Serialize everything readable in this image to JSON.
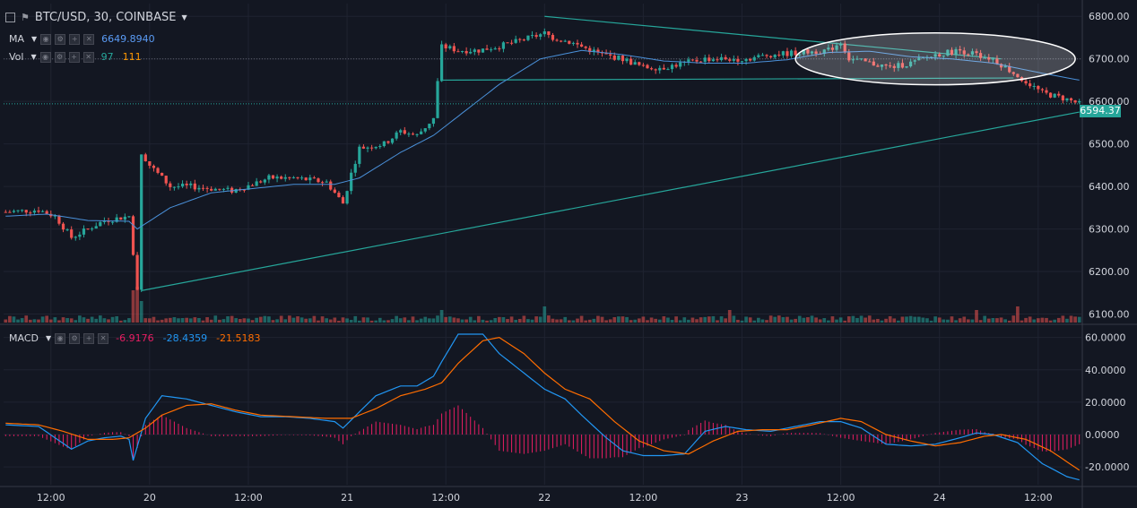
{
  "header": {
    "symbol_title": "BTC/USD, 30, COINBASE"
  },
  "indicators": {
    "ma": {
      "name": "MA",
      "value": "6649.8940"
    },
    "vol": {
      "name": "Vol",
      "value1": "97",
      "value2": "111"
    },
    "macd": {
      "name": "MACD",
      "value_hist": "-6.9176",
      "value_macd": "-28.4359",
      "value_signal": "-21.5183"
    }
  },
  "last_price_label": "6594.37",
  "colors": {
    "background": "#131722",
    "up": "#26a69a",
    "down": "#ef5350",
    "ma_line": "#4a90d9",
    "macd_line": "#2196f3",
    "signal_line": "#ff6d00",
    "histogram": "#e91e63",
    "trendline": "#26a69a"
  },
  "chart_data": [
    {
      "type": "candlestick",
      "title": "BTC/USD, 30, COINBASE",
      "ylim": [
        6080,
        6830
      ],
      "y_ticks": [
        "6800.00",
        "6700.00",
        "6600.00",
        "6500.00",
        "6400.00",
        "6300.00",
        "6200.00",
        "6100.00"
      ],
      "y_tick_values": [
        6800,
        6700,
        6600,
        6500,
        6400,
        6300,
        6200,
        6100
      ],
      "x_ticks": [
        "12:00",
        "20",
        "12:00",
        "21",
        "12:00",
        "22",
        "12:00",
        "23",
        "12:00",
        "24",
        "12:00"
      ],
      "x_tick_bars": [
        11,
        35,
        59,
        83,
        107,
        131,
        155,
        179,
        203,
        227,
        251
      ],
      "bar_count": 262,
      "last_price": 6594.37,
      "close_path_keyframes": [
        [
          0,
          6340
        ],
        [
          8,
          6345
        ],
        [
          12,
          6330
        ],
        [
          16,
          6280
        ],
        [
          20,
          6300
        ],
        [
          24,
          6320
        ],
        [
          30,
          6330
        ],
        [
          32,
          6160
        ],
        [
          33,
          6480
        ],
        [
          35,
          6450
        ],
        [
          40,
          6400
        ],
        [
          45,
          6400
        ],
        [
          55,
          6390
        ],
        [
          60,
          6405
        ],
        [
          64,
          6420
        ],
        [
          70,
          6420
        ],
        [
          78,
          6410
        ],
        [
          82,
          6360
        ],
        [
          84,
          6430
        ],
        [
          86,
          6490
        ],
        [
          92,
          6500
        ],
        [
          96,
          6530
        ],
        [
          100,
          6520
        ],
        [
          104,
          6560
        ],
        [
          106,
          6730
        ],
        [
          110,
          6720
        ],
        [
          115,
          6720
        ],
        [
          120,
          6730
        ],
        [
          124,
          6740
        ],
        [
          131,
          6760
        ],
        [
          133,
          6750
        ],
        [
          137,
          6740
        ],
        [
          145,
          6710
        ],
        [
          150,
          6700
        ],
        [
          155,
          6680
        ],
        [
          160,
          6680
        ],
        [
          170,
          6700
        ],
        [
          175,
          6700
        ],
        [
          180,
          6700
        ],
        [
          186,
          6710
        ],
        [
          200,
          6720
        ],
        [
          203,
          6740
        ],
        [
          205,
          6700
        ],
        [
          215,
          6680
        ],
        [
          220,
          6690
        ],
        [
          226,
          6710
        ],
        [
          232,
          6720
        ],
        [
          240,
          6700
        ],
        [
          246,
          6660
        ],
        [
          252,
          6620
        ],
        [
          258,
          6605
        ],
        [
          261,
          6594
        ]
      ],
      "ma_path_keyframes": [
        [
          0,
          6330
        ],
        [
          10,
          6335
        ],
        [
          20,
          6320
        ],
        [
          30,
          6318
        ],
        [
          32,
          6300
        ],
        [
          40,
          6350
        ],
        [
          50,
          6385
        ],
        [
          60,
          6395
        ],
        [
          70,
          6405
        ],
        [
          80,
          6405
        ],
        [
          86,
          6420
        ],
        [
          96,
          6480
        ],
        [
          104,
          6520
        ],
        [
          112,
          6580
        ],
        [
          120,
          6640
        ],
        [
          130,
          6700
        ],
        [
          140,
          6720
        ],
        [
          150,
          6710
        ],
        [
          160,
          6695
        ],
        [
          170,
          6690
        ],
        [
          180,
          6690
        ],
        [
          190,
          6698
        ],
        [
          200,
          6715
        ],
        [
          210,
          6718
        ],
        [
          220,
          6705
        ],
        [
          230,
          6700
        ],
        [
          240,
          6690
        ],
        [
          250,
          6670
        ],
        [
          261,
          6650
        ]
      ],
      "volume_spikes": [
        [
          31,
          0.9
        ],
        [
          32,
          1.0
        ],
        [
          33,
          0.6
        ],
        [
          106,
          0.35
        ],
        [
          131,
          0.45
        ],
        [
          176,
          0.35
        ],
        [
          236,
          0.35
        ],
        [
          246,
          0.45
        ]
      ],
      "trendlines": [
        {
          "name": "support",
          "points": [
            [
              33,
              6155
            ],
            [
              261,
              6575
            ]
          ]
        },
        {
          "name": "upper",
          "points": [
            [
              131,
              6800
            ],
            [
              242,
              6700
            ]
          ]
        },
        {
          "name": "base",
          "points": [
            [
              106,
              6650
            ],
            [
              245,
              6655
            ]
          ]
        }
      ],
      "highlight_ellipse": {
        "center": [
          226,
          6700
        ],
        "radius_bars": 34,
        "radius_price": 61
      }
    },
    {
      "type": "line",
      "title": "MACD",
      "ylim": [
        -31,
        67
      ],
      "y_ticks": [
        "60.0000",
        "40.0000",
        "20.0000",
        "0.0000",
        "-20.0000"
      ],
      "y_tick_values": [
        60,
        40,
        20,
        0,
        -20
      ],
      "series": [
        {
          "name": "MACD",
          "keyframes": [
            [
              0,
              6
            ],
            [
              8,
              5
            ],
            [
              12,
              -2
            ],
            [
              16,
              -9
            ],
            [
              20,
              -4
            ],
            [
              24,
              -2
            ],
            [
              28,
              -1
            ],
            [
              30,
              -3
            ],
            [
              31,
              -16
            ],
            [
              34,
              10
            ],
            [
              38,
              24
            ],
            [
              44,
              22
            ],
            [
              50,
              18
            ],
            [
              56,
              14
            ],
            [
              62,
              11
            ],
            [
              68,
              11
            ],
            [
              74,
              10
            ],
            [
              80,
              8
            ],
            [
              82,
              4
            ],
            [
              86,
              14
            ],
            [
              90,
              24
            ],
            [
              96,
              30
            ],
            [
              100,
              30
            ],
            [
              104,
              36
            ],
            [
              106,
              45
            ],
            [
              110,
              62
            ],
            [
              116,
              62
            ],
            [
              120,
              50
            ],
            [
              126,
              38
            ],
            [
              131,
              28
            ],
            [
              136,
              22
            ],
            [
              140,
              12
            ],
            [
              146,
              -2
            ],
            [
              150,
              -10
            ],
            [
              155,
              -13
            ],
            [
              160,
              -13
            ],
            [
              165,
              -12
            ],
            [
              170,
              2
            ],
            [
              175,
              5
            ],
            [
              180,
              3
            ],
            [
              186,
              2
            ],
            [
              192,
              5
            ],
            [
              198,
              8
            ],
            [
              203,
              8
            ],
            [
              208,
              4
            ],
            [
              214,
              -6
            ],
            [
              220,
              -7
            ],
            [
              226,
              -6
            ],
            [
              232,
              -2
            ],
            [
              236,
              1
            ],
            [
              240,
              0
            ],
            [
              246,
              -5
            ],
            [
              252,
              -18
            ],
            [
              258,
              -26
            ],
            [
              261,
              -28
            ]
          ]
        },
        {
          "name": "Signal",
          "keyframes": [
            [
              0,
              7
            ],
            [
              8,
              6
            ],
            [
              14,
              2
            ],
            [
              20,
              -3
            ],
            [
              26,
              -3
            ],
            [
              30,
              -2
            ],
            [
              34,
              4
            ],
            [
              38,
              12
            ],
            [
              44,
              18
            ],
            [
              50,
              19
            ],
            [
              56,
              15
            ],
            [
              62,
              12
            ],
            [
              70,
              11
            ],
            [
              78,
              10
            ],
            [
              84,
              10
            ],
            [
              90,
              16
            ],
            [
              96,
              24
            ],
            [
              102,
              28
            ],
            [
              106,
              32
            ],
            [
              110,
              44
            ],
            [
              116,
              58
            ],
            [
              120,
              60
            ],
            [
              126,
              50
            ],
            [
              131,
              38
            ],
            [
              136,
              28
            ],
            [
              142,
              22
            ],
            [
              148,
              8
            ],
            [
              154,
              -4
            ],
            [
              160,
              -10
            ],
            [
              166,
              -12
            ],
            [
              172,
              -4
            ],
            [
              178,
              2
            ],
            [
              184,
              3
            ],
            [
              190,
              3
            ],
            [
              196,
              6
            ],
            [
              203,
              10
            ],
            [
              208,
              8
            ],
            [
              214,
              0
            ],
            [
              220,
              -4
            ],
            [
              226,
              -7
            ],
            [
              232,
              -5
            ],
            [
              238,
              -1
            ],
            [
              242,
              0
            ],
            [
              248,
              -3
            ],
            [
              254,
              -10
            ],
            [
              261,
              -22
            ]
          ]
        }
      ]
    }
  ]
}
